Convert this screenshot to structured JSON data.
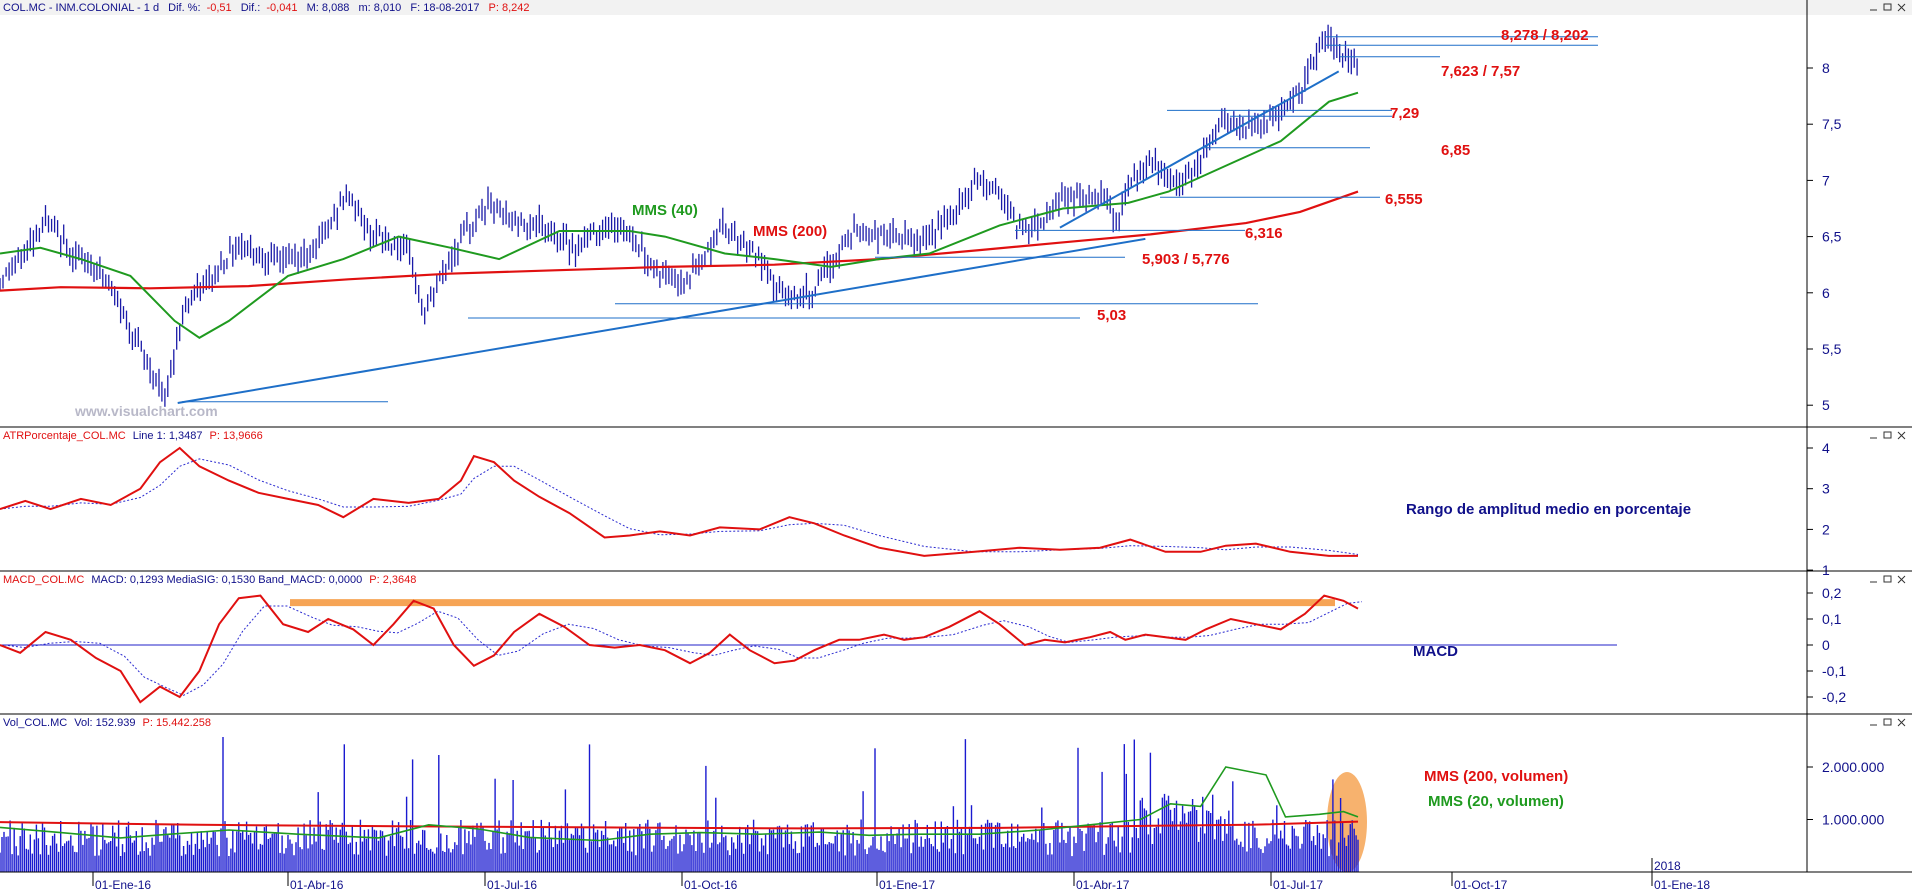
{
  "header": {
    "symbol": "COL.MC - INM.COLONIAL - 1 d",
    "dif_pct_label": "Dif. %:",
    "dif_pct": "-0,51",
    "dif_label": "Dif.:",
    "dif": "-0,041",
    "max": "M: 8,088",
    "min": "m: 8,010",
    "date": "F: 18-08-2017",
    "price": "P: 8,242"
  },
  "panels": {
    "atr": {
      "header_name": "ATRPorcentaje_COL.MC",
      "header_vals": "Line 1: 1,3487",
      "header_p": "P: 13,9666",
      "annotation": "Rango de amplitud medio en porcentaje",
      "ticks": [
        "4",
        "3",
        "2",
        "1"
      ]
    },
    "macd": {
      "header_name": "MACD_COL.MC",
      "header_vals": "MACD: 0,1293  MediaSIG: 0,1530  Band_MACD: 0,0000",
      "header_p": "P: 2,3648",
      "annotation": "MACD",
      "ticks": [
        "0,2",
        "0,1",
        "0",
        "-0,1",
        "-0,2"
      ]
    },
    "volume": {
      "header_name": "Vol_COL.MC",
      "header_vals": "Vol: 152.939",
      "header_p": "P: 15.442.258",
      "ma200_label": "MMS (200, volumen)",
      "ma20_label": "MMS (20, volumen)",
      "ticks": [
        "2.000.000",
        "1.000.000"
      ]
    }
  },
  "price_panel": {
    "ticks": [
      "8",
      "7,5",
      "7",
      "6,5",
      "6",
      "5,5",
      "5"
    ],
    "levels": [
      "8,278 / 8,202",
      "8,10",
      "7,623 / 7,57",
      "7,29",
      "6,85",
      "6,555",
      "6,316",
      "5,903 / 5,776",
      "5,03"
    ],
    "ma40_label": "MMS (40)",
    "ma200_label": "MMS (200)",
    "watermark": "www.visualchart.com"
  },
  "x_axis": {
    "labels": [
      "01-Ene-16",
      "01-Abr-16",
      "01-Jul-16",
      "01-Oct-16",
      "01-Ene-17",
      "01-Abr-17",
      "01-Jul-17",
      "01-Oct-17",
      "01-Ene-18"
    ],
    "year_marker": "2018"
  },
  "colors": {
    "price_bars": "#1a1aa8",
    "ma40": "#1f9a1f",
    "ma200": "#e01010",
    "trendline": "#1e6fc8",
    "level_line": "#1e6fc8",
    "level_text": "#e01010",
    "indicator_main": "#e01010",
    "indicator_signal": "#2a2ad0",
    "volume_bars": "#1a1ad0",
    "macd_band": "#f6a455",
    "annotation_text": "#10108a"
  },
  "chart_data": [
    {
      "type": "bar",
      "subtype": "ohlc",
      "x": [
        "2016-01-01",
        "2016-04-01",
        "2016-07-01",
        "2016-10-01",
        "2017-01-01",
        "2017-04-01",
        "2017-07-01",
        "2017-08-18"
      ],
      "close_approx": [
        6.2,
        6.1,
        6.2,
        6.2,
        6.4,
        6.9,
        7.6,
        8.05
      ],
      "ylim": [
        4.85,
        8.5
      ],
      "series": [
        {
          "name": "MMS (40)",
          "values_approx": [
            6.4,
            6.1,
            6.4,
            6.15,
            6.35,
            6.85,
            7.5,
            7.78
          ]
        },
        {
          "name": "MMS (200)",
          "values_approx": [
            6.05,
            6.05,
            6.2,
            6.22,
            6.35,
            6.55,
            6.7,
            6.92
          ]
        }
      ],
      "horizontal_levels": [
        8.278,
        8.202,
        8.1,
        7.623,
        7.57,
        7.29,
        6.85,
        6.555,
        6.316,
        5.903,
        5.776,
        5.03
      ],
      "annotations": [
        "MMS (40)",
        "MMS (200)"
      ]
    },
    {
      "type": "line",
      "title": "ATRPorcentaje_COL.MC",
      "ylim": [
        1,
        4
      ],
      "series": [
        {
          "name": "Line 1",
          "last": 1.3487
        }
      ]
    },
    {
      "type": "line",
      "title": "MACD_COL.MC",
      "ylim": [
        -0.27,
        0.22
      ],
      "series": [
        {
          "name": "MACD",
          "last": 0.1293
        },
        {
          "name": "MediaSIG",
          "last": 0.153
        },
        {
          "name": "Band_MACD",
          "last": 0.0
        }
      ]
    },
    {
      "type": "bar",
      "title": "Vol_COL.MC",
      "ylim": [
        0,
        2700000
      ],
      "series": [
        {
          "name": "Vol",
          "last": 152939
        },
        {
          "name": "MMS (200, volumen)"
        },
        {
          "name": "MMS (20, volumen)"
        }
      ]
    }
  ]
}
